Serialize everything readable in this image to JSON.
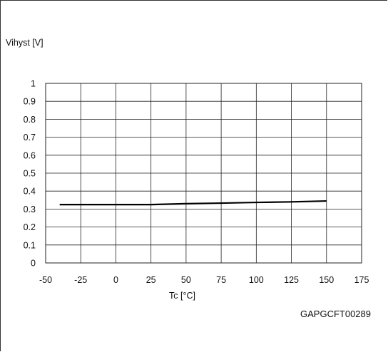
{
  "chart_data": {
    "type": "line",
    "ylabel": "Vihyst [V]",
    "xlabel": "Tc [°C]",
    "xlim": [
      -50,
      175
    ],
    "ylim": [
      0,
      1
    ],
    "x_ticks": [
      -50,
      -25,
      0,
      25,
      50,
      75,
      100,
      125,
      150,
      175
    ],
    "y_ticks": [
      0,
      0.1,
      0.2,
      0.3,
      0.4,
      0.5,
      0.6,
      0.7,
      0.8,
      0.9,
      1
    ],
    "x_tick_labels": [
      "-50",
      "-25",
      "0",
      "25",
      "50",
      "75",
      "100",
      "125",
      "150",
      "175"
    ],
    "y_tick_labels": [
      "0",
      "0.1",
      "0.2",
      "0.3",
      "0.4",
      "0.5",
      "0.6",
      "0.7",
      "0.8",
      "0.9",
      "1"
    ],
    "grid": true,
    "series": [
      {
        "x": [
          -40,
          -25,
          0,
          25,
          50,
          75,
          100,
          125,
          150
        ],
        "y": [
          0.325,
          0.325,
          0.325,
          0.325,
          0.33,
          0.333,
          0.337,
          0.34,
          0.345
        ],
        "color": "#000000"
      }
    ],
    "annotation": "GAPGCFT00289"
  }
}
